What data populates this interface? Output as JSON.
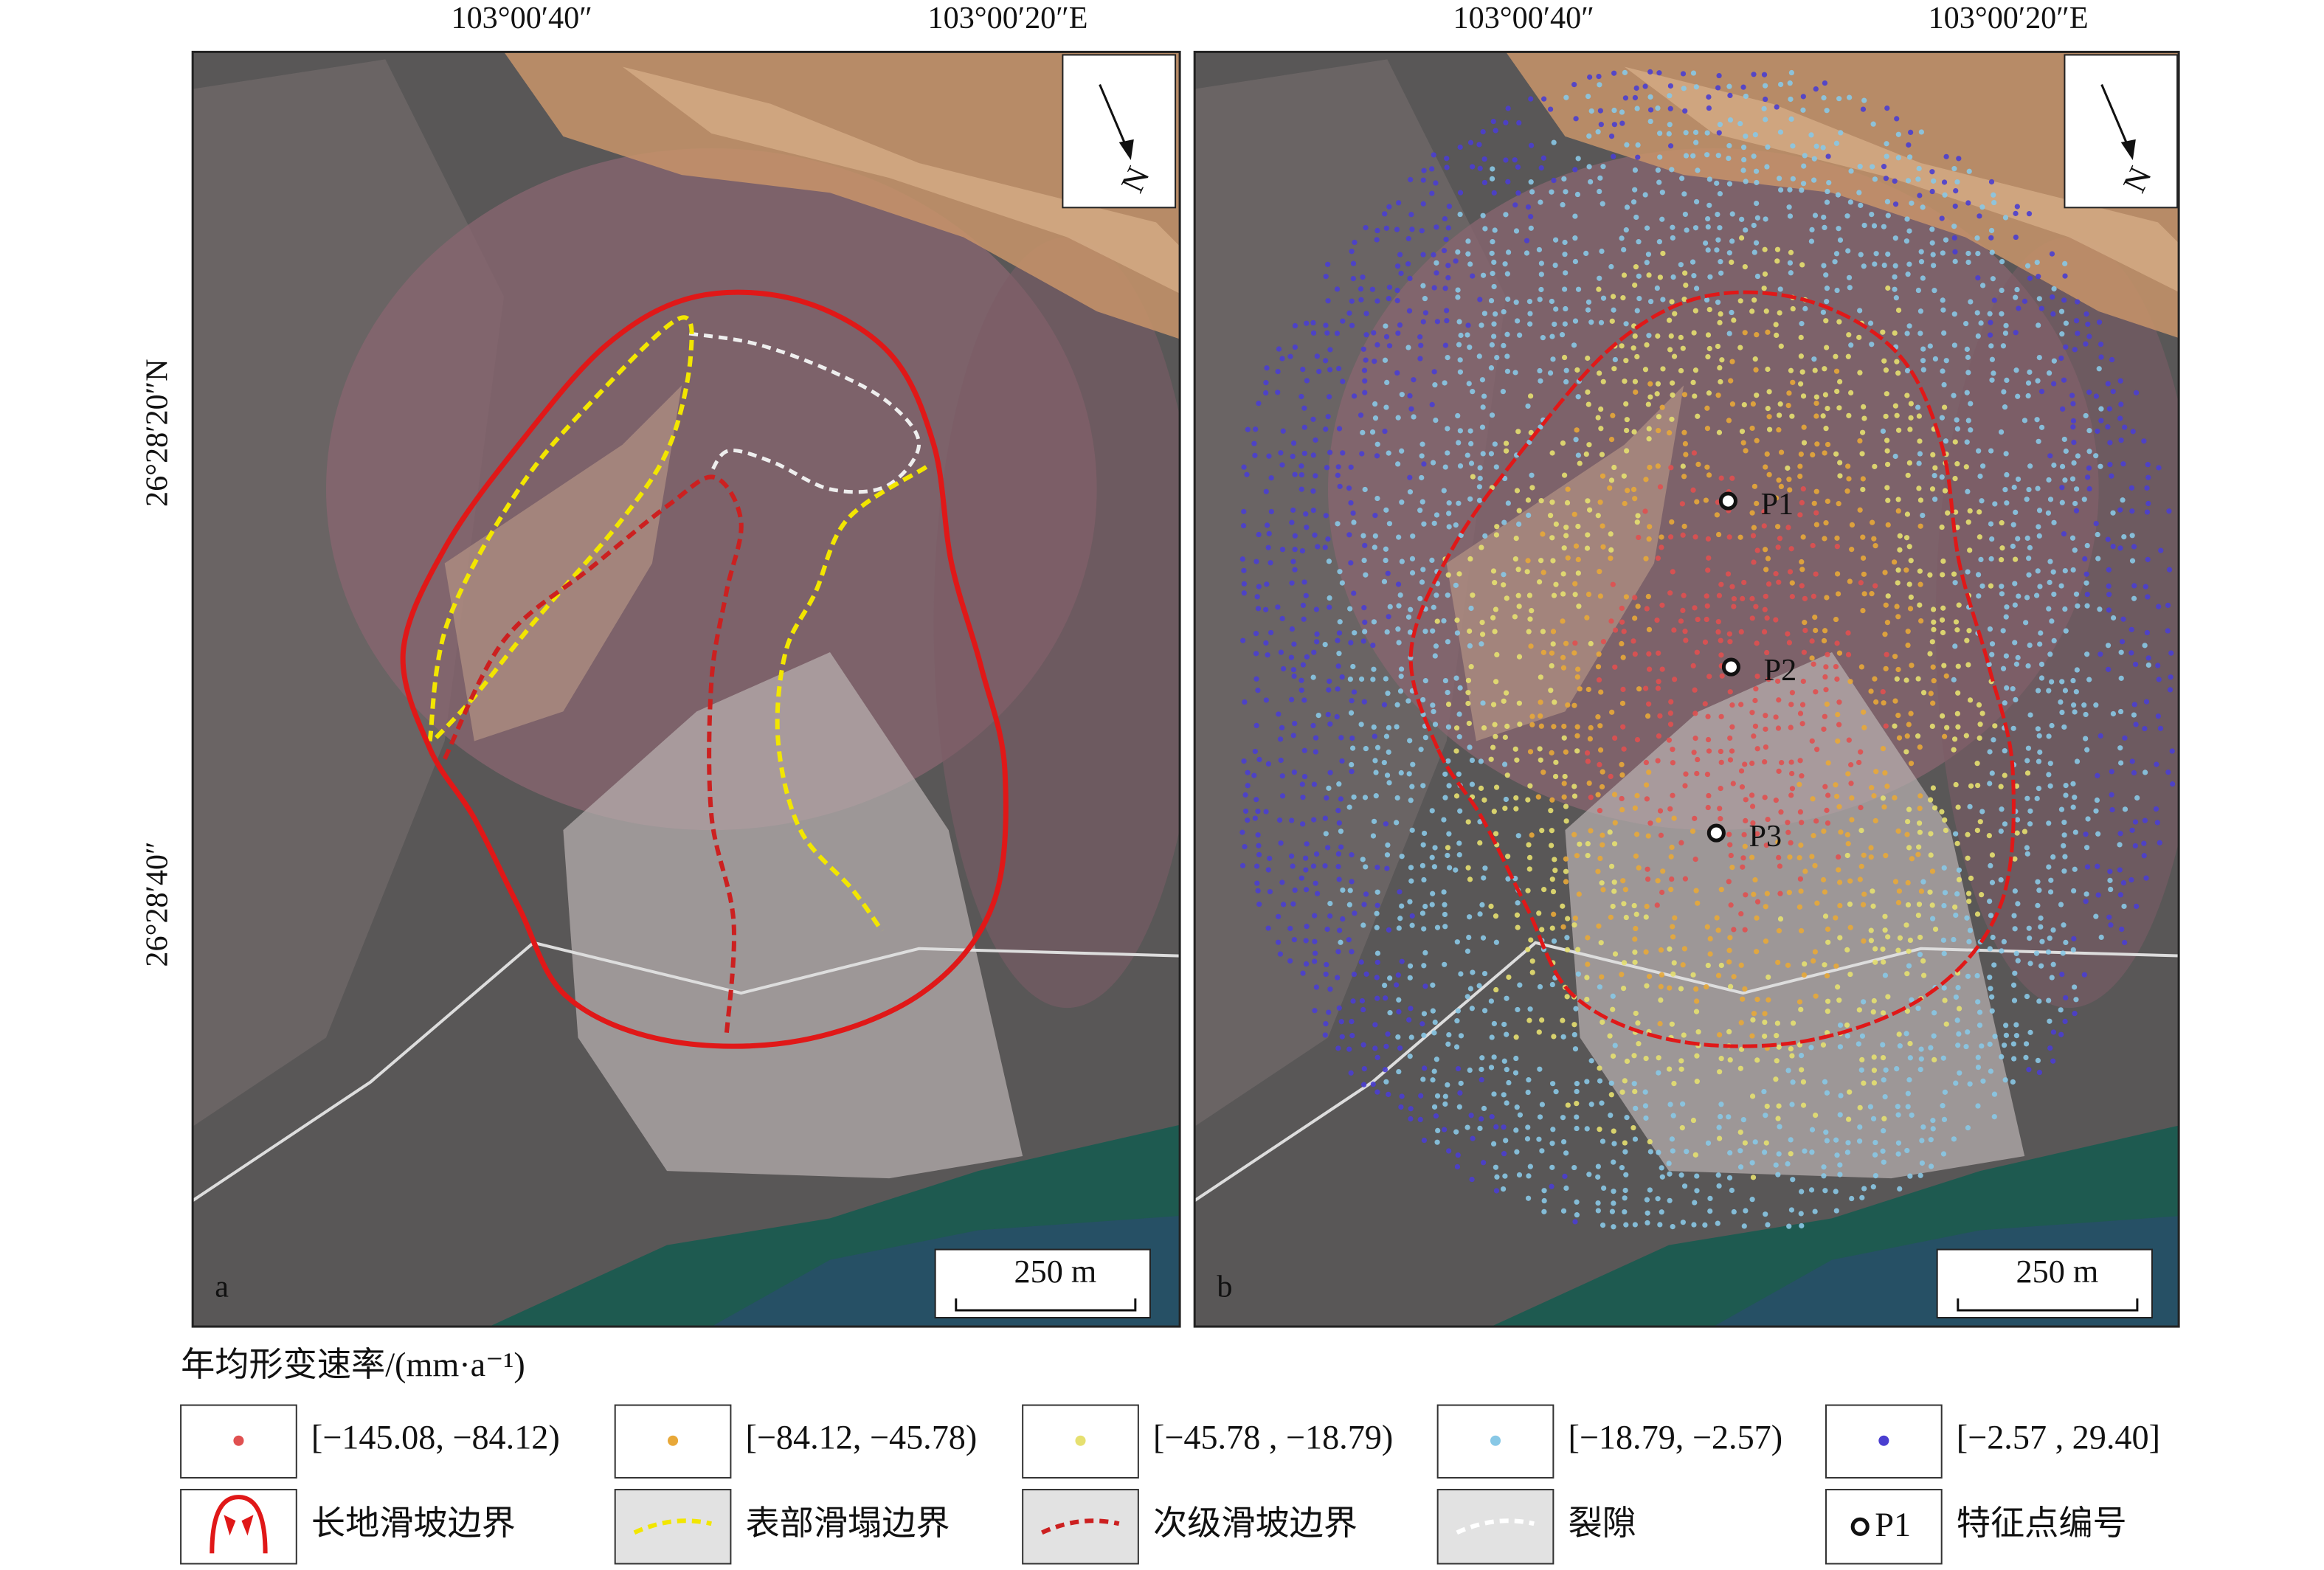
{
  "panels": [
    {
      "label": "a",
      "lon_labels": [
        "103°00′40″",
        "103°00′20″E"
      ],
      "lat_labels": [
        "26°28′20″N",
        "26°28′40″"
      ],
      "north": "N",
      "scale": "250 m"
    },
    {
      "label": "b",
      "lon_labels": [
        "103°00′40″",
        "103°00′20″E"
      ],
      "north": "N",
      "scale": "250 m",
      "points": [
        "P1",
        "P2",
        "P3"
      ]
    }
  ],
  "legend": {
    "title": "年均形变速率/(mm·a⁻¹)",
    "classes": [
      "[−145.08,  −84.12)",
      "[−84.12, −45.78)",
      "[−45.78 , −18.79)",
      "[−18.79, −2.57)",
      "[−2.57 , 29.40]"
    ],
    "symbols": [
      {
        "label": "长地滑坡边界"
      },
      {
        "label": "表部滑塌边界"
      },
      {
        "label": "次级滑坡边界"
      },
      {
        "label": "裂隙"
      },
      {
        "marker": "P1",
        "label": "特征点编号"
      }
    ]
  }
}
